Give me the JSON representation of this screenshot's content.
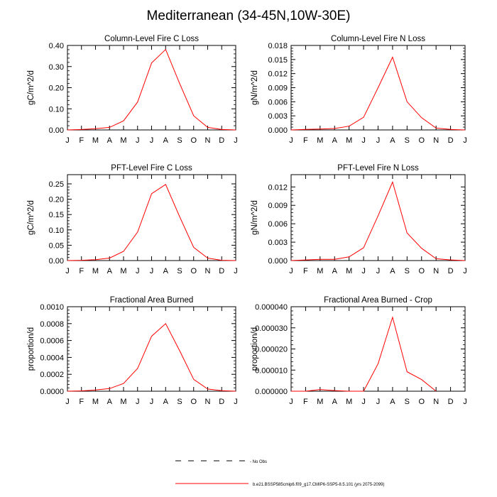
{
  "figure_title": "Mediterranean (34-45N,10W-30E)",
  "x_ticks": [
    "J",
    "F",
    "M",
    "A",
    "M",
    "J",
    "J",
    "A",
    "S",
    "O",
    "N",
    "D",
    "J"
  ],
  "line_color": "#ff0000",
  "legend": {
    "obs_label": "No Obs",
    "model_label": "b.e21.BSSP585cmip6.f09_g17.CMIP6-SSP5-8.5.101 (yrs 2075-2099)"
  },
  "chart_data": [
    {
      "type": "line",
      "title": "Column-Level Fire C Loss",
      "ylabel": "gC/m^2/d",
      "ylim": [
        0,
        0.4
      ],
      "y_ticks": [
        "0.00",
        "0.10",
        "0.20",
        "0.30",
        "0.40"
      ],
      "x": [
        "J",
        "F",
        "M",
        "A",
        "M",
        "J",
        "J",
        "A",
        "S",
        "O",
        "N",
        "D",
        "J"
      ],
      "series": [
        {
          "name": "b.e21.BSSP585cmip6.f09_g17.CMIP6-SSP5-8.5.101 (yrs 2075-2099)",
          "values": [
            0.0,
            0.002,
            0.006,
            0.012,
            0.043,
            0.132,
            0.317,
            0.381,
            0.22,
            0.067,
            0.012,
            0.002,
            0.0
          ]
        }
      ]
    },
    {
      "type": "line",
      "title": "Column-Level Fire N Loss",
      "ylabel": "gN/m^2/d",
      "ylim": [
        0,
        0.018
      ],
      "y_ticks": [
        "0.000",
        "0.003",
        "0.006",
        "0.009",
        "0.012",
        "0.015",
        "0.018"
      ],
      "x": [
        "J",
        "F",
        "M",
        "A",
        "M",
        "J",
        "J",
        "A",
        "S",
        "O",
        "N",
        "D",
        "J"
      ],
      "series": [
        {
          "name": "b.e21.BSSP585cmip6.f09_g17.CMIP6-SSP5-8.5.101 (yrs 2075-2099)",
          "values": [
            0.0,
            0.0001,
            0.0002,
            0.0003,
            0.0008,
            0.0027,
            0.009,
            0.0155,
            0.006,
            0.0026,
            0.0004,
            0.0001,
            0.0
          ]
        }
      ]
    },
    {
      "type": "line",
      "title": "PFT-Level Fire C Loss",
      "ylabel": "gC/m^2/d",
      "ylim": [
        0,
        0.28
      ],
      "y_ticks": [
        "0.00",
        "0.05",
        "0.10",
        "0.15",
        "0.20",
        "0.25"
      ],
      "x": [
        "J",
        "F",
        "M",
        "A",
        "M",
        "J",
        "J",
        "A",
        "S",
        "O",
        "N",
        "D",
        "J"
      ],
      "series": [
        {
          "name": "b.e21.BSSP585cmip6.f09_g17.CMIP6-SSP5-8.5.101 (yrs 2075-2099)",
          "values": [
            0.0,
            0.001,
            0.003,
            0.008,
            0.03,
            0.093,
            0.218,
            0.248,
            0.143,
            0.043,
            0.008,
            0.001,
            0.0
          ]
        }
      ]
    },
    {
      "type": "line",
      "title": "PFT-Level Fire N Loss",
      "ylabel": "gN/m^2/d",
      "ylim": [
        0,
        0.014
      ],
      "y_ticks": [
        "0.000",
        "0.003",
        "0.006",
        "0.009",
        "0.012"
      ],
      "x": [
        "J",
        "F",
        "M",
        "A",
        "M",
        "J",
        "J",
        "A",
        "S",
        "O",
        "N",
        "D",
        "J"
      ],
      "series": [
        {
          "name": "b.e21.BSSP585cmip6.f09_g17.CMIP6-SSP5-8.5.101 (yrs 2075-2099)",
          "values": [
            0.0,
            0.0001,
            0.0002,
            0.0002,
            0.0006,
            0.0021,
            0.0073,
            0.0128,
            0.0045,
            0.002,
            0.0003,
            0.0001,
            0.0
          ]
        }
      ]
    },
    {
      "type": "line",
      "title": "Fractional Area Burned",
      "ylabel": "proportion/d",
      "ylim": [
        0,
        0.001
      ],
      "y_ticks": [
        "0.0000",
        "0.0002",
        "0.0004",
        "0.0006",
        "0.0008",
        "0.0010"
      ],
      "x": [
        "J",
        "F",
        "M",
        "A",
        "M",
        "J",
        "J",
        "A",
        "S",
        "O",
        "N",
        "D",
        "J"
      ],
      "series": [
        {
          "name": "b.e21.BSSP585cmip6.f09_g17.CMIP6-SSP5-8.5.101 (yrs 2075-2099)",
          "values": [
            0.0,
            4e-06,
            1.4e-05,
            3.1e-05,
            9.2e-05,
            0.00027,
            0.00065,
            0.0008,
            0.00048,
            0.00014,
            2.6e-05,
            6e-06,
            0.0
          ]
        }
      ]
    },
    {
      "type": "line",
      "title": "Fractional Area Burned - Crop",
      "ylabel": "proportion/d",
      "ylim": [
        0,
        4e-05
      ],
      "y_ticks": [
        "0.000000",
        "0.000010",
        "0.000020",
        "0.000030",
        "0.000040"
      ],
      "x": [
        "J",
        "F",
        "M",
        "A",
        "M",
        "J",
        "J",
        "A",
        "S",
        "O",
        "N",
        "D",
        "J"
      ],
      "series": [
        {
          "name": "b.e21.BSSP585cmip6.f09_g17.CMIP6-SSP5-8.5.101 (yrs 2075-2099)",
          "values": [
            0.0,
            0.0,
            8e-07,
            3e-07,
            0.0,
            0.0,
            1.3e-05,
            3.5e-05,
            9.2e-06,
            5.5e-06,
            0.0,
            null,
            null
          ]
        }
      ]
    }
  ]
}
